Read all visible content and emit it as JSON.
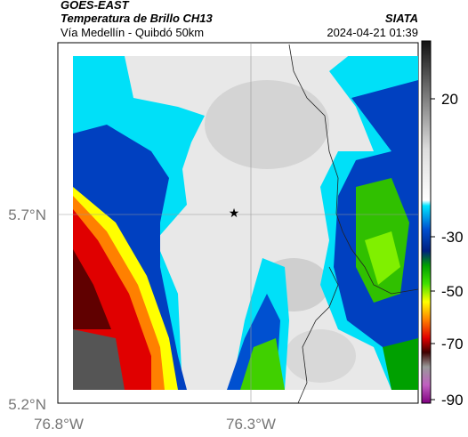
{
  "header": {
    "source": "GOES-EAST",
    "title": "Temperatura de Brillo CH13",
    "org": "SIATA",
    "subtitle": "Vía Medellín - Quibdó 50km",
    "timestamp": "2024-04-21 01:39"
  },
  "axes": {
    "lat_labels": [
      "5.7°N",
      "5.2°N"
    ],
    "lon_labels": [
      "76.8°W",
      "76.3°W"
    ]
  },
  "colorbar": {
    "ticks": [
      20,
      -30,
      -50,
      -70,
      -90
    ]
  }
}
